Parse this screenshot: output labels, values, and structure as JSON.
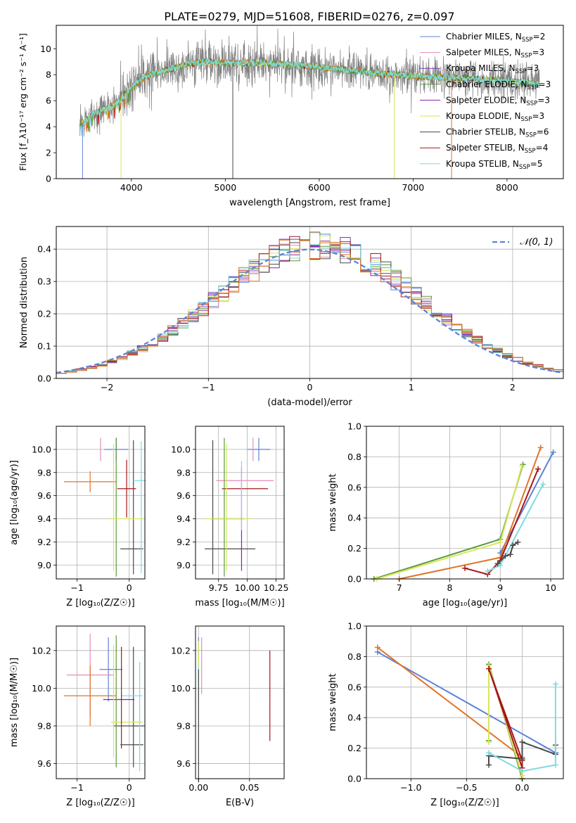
{
  "figure_title": "PLATE=0279, MJD=51608, FIBERID=0276, z=0.097",
  "colors": {
    "Chabrier MILES": "#5b84d6",
    "Salpeter MILES": "#e98cb8",
    "Kroupa MILES": "#7a3cb0",
    "Chabrier ELODIE": "#5a9a3a",
    "Salpeter ELODIE": "#8c1fb0",
    "Kroupa ELODIE": "#d8e65a",
    "Chabrier STELIB": "#4a4a4a",
    "Salpeter STELIB": "#a51818",
    "Kroupa STELIB": "#7fdbe0",
    "orange": "#e07426",
    "data": "#808080",
    "gauss": "#5b84d6"
  },
  "legend_spectrum": [
    {
      "name": "Chabrier MILES",
      "label": "Chabrier MILES, N",
      "n": "2"
    },
    {
      "name": "Salpeter MILES",
      "label": "Salpeter MILES, N",
      "n": "3"
    },
    {
      "name": "Kroupa MILES",
      "label": "Kroupa MILES, N",
      "n": "3"
    },
    {
      "name": "Chabrier ELODIE",
      "label": "Chabrier ELODIE, N",
      "n": "3"
    },
    {
      "name": "Salpeter ELODIE",
      "label": "Salpeter ELODIE, N",
      "n": "3"
    },
    {
      "name": "Kroupa ELODIE",
      "label": "Kroupa ELODIE, N",
      "n": "3"
    },
    {
      "name": "Chabrier STELIB",
      "label": "Chabrier STELIB, N",
      "n": "6"
    },
    {
      "name": "Salpeter STELIB",
      "label": "Salpeter STELIB, N",
      "n": "4"
    },
    {
      "name": "Kroupa STELIB",
      "label": "Kroupa STELIB, N",
      "n": "5"
    }
  ],
  "legend_sub": "SSP",
  "chart_data": [
    {
      "id": "spectrum",
      "type": "line",
      "xlabel": "wavelength [Angstrom, rest frame]",
      "ylabel": "Flux [f_λ10⁻¹⁷ erg cm⁻² s⁻¹ A⁻¹]",
      "xlim": [
        3200,
        8600
      ],
      "ylim": [
        0,
        11.8
      ],
      "xticks": [
        4000,
        5000,
        6000,
        7000,
        8000
      ],
      "yticks": [
        0,
        2,
        4,
        6,
        8,
        10
      ],
      "continuum": {
        "x": [
          3450,
          3500,
          3600,
          3700,
          3800,
          3900,
          4000,
          4100,
          4200,
          4400,
          4600,
          4800,
          5000,
          5200,
          5400,
          5600,
          5800,
          6000,
          6200,
          6400,
          6600,
          6800,
          7000,
          7200,
          7400,
          7600,
          7800,
          8000,
          8200,
          8350
        ],
        "y": [
          4.1,
          4.3,
          5.0,
          5.3,
          5.6,
          6.2,
          7.0,
          7.6,
          8.0,
          8.4,
          8.8,
          9.0,
          8.9,
          8.9,
          8.9,
          8.8,
          8.7,
          8.6,
          8.4,
          8.3,
          8.1,
          8.0,
          7.9,
          7.8,
          7.8,
          7.7,
          7.6,
          7.5,
          7.4,
          7.2
        ]
      }
    },
    {
      "id": "residuals",
      "type": "histogram",
      "xlabel": "(data-model)/error",
      "ylabel": "Normed distribution",
      "xlim": [
        -2.5,
        2.5
      ],
      "ylim": [
        0,
        0.47
      ],
      "xticks": [
        -2,
        -1,
        0,
        1,
        2
      ],
      "yticks": [
        0.0,
        0.1,
        0.2,
        0.3,
        0.4
      ],
      "legend": "𝒩(0, 1)",
      "bin_width": 0.1,
      "bins_start": -2.5
    },
    {
      "id": "age-vs-Z",
      "type": "errorbar",
      "xlabel": "Z [log₁₀(Z/Z☉)]",
      "ylabel": "age [log₁₀(age/yr)]",
      "xlim": [
        -1.4,
        0.3
      ],
      "ylim": [
        8.88,
        10.2
      ],
      "xticks": [
        -1,
        0
      ],
      "xticklabels": [
        "−1",
        "0"
      ],
      "yticks": [
        9.0,
        9.2,
        9.4,
        9.6,
        9.8,
        10.0
      ],
      "points": [
        {
          "series": "Chabrier MILES",
          "x": -0.25,
          "xerr": 0.23,
          "y": 10.0,
          "yerr": 0.1
        },
        {
          "series": "orange",
          "x": -0.75,
          "xerr": 0.5,
          "y": 9.72,
          "yerr": 0.09
        },
        {
          "series": "Salpeter MILES",
          "x": -0.55,
          "xerr": 0.0,
          "y": 10.0,
          "yerr": 0.1
        },
        {
          "series": "Salpeter STELIB",
          "x": -0.05,
          "xerr": 0.18,
          "y": 9.66,
          "yerr": 0.25
        },
        {
          "series": "Kroupa ELODIE",
          "x": -0.3,
          "xerr": 0.0,
          "y": 9.5,
          "yerr": 0.55
        },
        {
          "series": "Chabrier ELODIE",
          "x": -0.25,
          "xerr": 0.0,
          "y": 9.5,
          "yerr": 0.6
        },
        {
          "series": "Chabrier STELIB",
          "x": 0.05,
          "xerr": 0.22,
          "y": 9.14,
          "yerr": 0.0
        },
        {
          "series": "Chabrier STELIB",
          "x": 0.08,
          "xerr": 0.0,
          "y": 9.5,
          "yerr": 0.58
        },
        {
          "series": "Kroupa STELIB",
          "x": 0.2,
          "xerr": 0.12,
          "y": 9.73,
          "yerr": 0.0
        },
        {
          "series": "Kroupa STELIB",
          "x": 0.23,
          "xerr": 0.0,
          "y": 9.5,
          "yerr": 0.57
        },
        {
          "series": "Kroupa ELODIE",
          "x": -0.05,
          "xerr": 0.32,
          "y": 9.4,
          "yerr": 0.0
        }
      ]
    },
    {
      "id": "age-vs-mass",
      "type": "errorbar",
      "xlabel": "mass [log₁₀(M/M☉)]",
      "ylabel": "",
      "xlim": [
        9.55,
        10.32
      ],
      "ylim": [
        8.88,
        10.2
      ],
      "xticks": [
        9.75,
        10.0,
        10.25
      ],
      "xticklabels": [
        "9.75",
        "10.00",
        "10.25"
      ],
      "yticks": [
        9.0,
        9.2,
        9.4,
        9.6,
        9.8,
        10.0
      ],
      "points": [
        {
          "series": "Chabrier MILES",
          "x": 10.1,
          "xerr": 0.1,
          "y": 10.0,
          "yerr": 0.1
        },
        {
          "series": "Salpeter MILES",
          "x": 10.05,
          "xerr": 0.0,
          "y": 10.0,
          "yerr": 0.1
        },
        {
          "series": "Salpeter MILES",
          "x": 9.98,
          "xerr": 0.25,
          "y": 9.73,
          "yerr": 0.0
        },
        {
          "series": "Salpeter STELIB",
          "x": 9.98,
          "xerr": 0.2,
          "y": 9.66,
          "yerr": 0.0
        },
        {
          "series": "Chabrier STELIB",
          "x": 9.83,
          "xerr": 0.15,
          "y": 9.4,
          "yerr": 0.0
        },
        {
          "series": "Chabrier STELIB",
          "x": 9.85,
          "xerr": 0.22,
          "y": 9.14,
          "yerr": 0.0
        },
        {
          "series": "Chabrier STELIB",
          "x": 9.7,
          "xerr": 0.0,
          "y": 9.5,
          "yerr": 0.58
        },
        {
          "series": "Kroupa ELODIE",
          "x": 9.82,
          "xerr": 0.0,
          "y": 9.5,
          "yerr": 0.55
        },
        {
          "series": "Chabrier ELODIE",
          "x": 9.8,
          "xerr": 0.0,
          "y": 9.5,
          "yerr": 0.6
        },
        {
          "series": "Kroupa ELODIE",
          "x": 9.83,
          "xerr": 0.2,
          "y": 9.4,
          "yerr": 0.0
        },
        {
          "series": "Salpeter ELODIE",
          "x": 9.95,
          "xerr": 0.0,
          "y": 9.4,
          "yerr": 0.45
        },
        {
          "series": "Kroupa STELIB",
          "x": 9.95,
          "xerr": 0.0,
          "y": 9.6,
          "yerr": 0.3
        }
      ]
    },
    {
      "id": "weight-vs-age",
      "type": "line",
      "xlabel": "age [log₁₀(age/yr)]",
      "ylabel": "mass weight",
      "xlim": [
        6.35,
        10.25
      ],
      "ylim": [
        0,
        1.0
      ],
      "xticks": [
        7,
        8,
        9,
        10
      ],
      "yticks": [
        0.0,
        0.2,
        0.4,
        0.6,
        0.8,
        1.0
      ],
      "series": [
        {
          "name": "Chabrier MILES",
          "x": [
            9.0,
            10.05
          ],
          "y": [
            0.17,
            0.83
          ]
        },
        {
          "name": "orange",
          "x": [
            7.0,
            9.0,
            9.8
          ],
          "y": [
            0.0,
            0.14,
            0.86
          ]
        },
        {
          "name": "Chabrier ELODIE",
          "x": [
            6.5,
            9.0,
            9.45
          ],
          "y": [
            0.0,
            0.26,
            0.75
          ]
        },
        {
          "name": "Kroupa ELODIE",
          "x": [
            6.55,
            9.0,
            9.43
          ],
          "y": [
            0.0,
            0.24,
            0.74
          ]
        },
        {
          "name": "Salpeter STELIB",
          "x": [
            8.3,
            8.75,
            9.0,
            9.75
          ],
          "y": [
            0.07,
            0.03,
            0.12,
            0.72
          ]
        },
        {
          "name": "Kroupa STELIB",
          "x": [
            8.75,
            9.0,
            9.85
          ],
          "y": [
            0.05,
            0.09,
            0.62
          ]
        },
        {
          "name": "Chabrier STELIB",
          "x": [
            8.95,
            9.1,
            9.2,
            9.25,
            9.35
          ],
          "y": [
            0.1,
            0.15,
            0.16,
            0.22,
            0.24
          ]
        }
      ]
    },
    {
      "id": "mass-vs-Z",
      "type": "errorbar",
      "xlabel": "Z [log₁₀(Z/Z☉)]",
      "ylabel": "mass [log₁₀(M/M☉)]",
      "xlim": [
        -1.4,
        0.3
      ],
      "ylim": [
        9.52,
        10.33
      ],
      "xticks": [
        -1,
        0
      ],
      "xticklabels": [
        "−1",
        "0"
      ],
      "yticks": [
        9.6,
        9.8,
        10.0,
        10.2
      ],
      "points": [
        {
          "series": "Chabrier MILES",
          "x": -0.35,
          "xerr": 0.22,
          "y": 10.1,
          "yerr": 0.0
        },
        {
          "series": "Chabrier MILES",
          "x": -0.4,
          "xerr": 0.0,
          "y": 10.1,
          "yerr": 0.17
        },
        {
          "series": "Salpeter MILES",
          "x": -0.75,
          "xerr": 0.45,
          "y": 10.07,
          "yerr": 0.0
        },
        {
          "series": "Salpeter MILES",
          "x": -0.75,
          "xerr": 0.0,
          "y": 10.07,
          "yerr": 0.22
        },
        {
          "series": "orange",
          "x": -0.75,
          "xerr": 0.5,
          "y": 9.96,
          "yerr": 0.0
        },
        {
          "series": "orange",
          "x": -0.75,
          "xerr": 0.0,
          "y": 9.96,
          "yerr": 0.16
        },
        {
          "series": "Salpeter ELODIE",
          "x": -0.2,
          "xerr": 0.3,
          "y": 9.94,
          "yerr": 0.0
        },
        {
          "series": "Chabrier STELIB",
          "x": 0.08,
          "xerr": 0.0,
          "y": 9.9,
          "yerr": 0.32
        },
        {
          "series": "Chabrier STELIB",
          "x": 0.0,
          "xerr": 0.3,
          "y": 9.8,
          "yerr": 0.0
        },
        {
          "series": "Chabrier STELIB",
          "x": 0.05,
          "xerr": 0.22,
          "y": 9.7,
          "yerr": 0.0
        },
        {
          "series": "Chabrier ELODIE",
          "x": -0.25,
          "xerr": 0.0,
          "y": 9.93,
          "yerr": 0.35
        },
        {
          "series": "Kroupa ELODIE",
          "x": -0.3,
          "xerr": 0.0,
          "y": 9.93,
          "yerr": 0.3
        },
        {
          "series": "Kroupa ELODIE",
          "x": -0.05,
          "xerr": 0.3,
          "y": 9.82,
          "yerr": 0.0
        },
        {
          "series": "Kroupa STELIB",
          "x": 0.2,
          "xerr": 0.0,
          "y": 9.85,
          "yerr": 0.29
        },
        {
          "series": "Kroupa STELIB",
          "x": 0.05,
          "xerr": 0.2,
          "y": 9.96,
          "yerr": 0.0
        },
        {
          "series": "Salpeter STELIB",
          "x": -0.15,
          "xerr": 0.0,
          "y": 9.95,
          "yerr": 0.27
        }
      ]
    },
    {
      "id": "mass-vs-EBV",
      "type": "errorbar",
      "xlabel": "E(B-V)",
      "ylabel": "",
      "xlim": [
        -0.003,
        0.084
      ],
      "ylim": [
        9.52,
        10.33
      ],
      "xticks": [
        0.0,
        0.05
      ],
      "xticklabels": [
        "0.00",
        "0.05"
      ],
      "yticks": [
        9.6,
        9.8,
        10.0,
        10.2
      ],
      "points": [
        {
          "series": "Salpeter STELIB",
          "x": 0.07,
          "xerr": 0.0,
          "y": 9.96,
          "yerr": 0.24
        },
        {
          "series": "Salpeter MILES",
          "x": 0.003,
          "xerr": 0.0,
          "y": 10.12,
          "yerr": 0.15
        },
        {
          "series": "Chabrier MILES",
          "x": 0.0,
          "xerr": 0.0,
          "y": 10.1,
          "yerr": 0.17
        },
        {
          "series": "Kroupa ELODIE",
          "x": 0.0,
          "xerr": 0.0,
          "y": 9.9,
          "yerr": 0.35
        },
        {
          "series": "Kroupa STELIB",
          "x": 0.0,
          "xerr": 0.0,
          "y": 9.82,
          "yerr": 0.3
        },
        {
          "series": "Chabrier STELIB",
          "x": 0.0,
          "xerr": 0.0,
          "y": 9.8,
          "yerr": 0.3
        }
      ]
    },
    {
      "id": "weight-vs-Z",
      "type": "line",
      "xlabel": "Z [log₁₀(Z/Z☉)]",
      "ylabel": "mass weight",
      "xlim": [
        -1.4,
        0.37
      ],
      "ylim": [
        0,
        1.0
      ],
      "xticks": [
        -1.0,
        -0.5,
        0.0
      ],
      "xticklabels": [
        "−1.0",
        "−0.5",
        "0.0"
      ],
      "yticks": [
        0.0,
        0.2,
        0.4,
        0.6,
        0.8,
        1.0
      ],
      "series": [
        {
          "name": "Chabrier MILES",
          "x": [
            -1.3,
            0.3
          ],
          "y": [
            0.83,
            0.17
          ]
        },
        {
          "name": "orange",
          "x": [
            -1.3,
            0.0,
            0.0
          ],
          "y": [
            0.86,
            0.14,
            0.0
          ]
        },
        {
          "name": "Chabrier ELODIE",
          "x": [
            -0.3,
            -0.3,
            0.0
          ],
          "y": [
            0.25,
            0.75,
            0.0
          ]
        },
        {
          "name": "Kroupa ELODIE",
          "x": [
            -0.3,
            -0.3,
            0.0
          ],
          "y": [
            0.24,
            0.74,
            0.02
          ]
        },
        {
          "name": "Salpeter STELIB",
          "x": [
            -0.3,
            0.0,
            0.0,
            -0.3
          ],
          "y": [
            0.72,
            0.07,
            0.12,
            0.72
          ]
        },
        {
          "name": "Chabrier STELIB",
          "x": [
            -0.3,
            -0.3,
            0.0,
            0.0,
            0.3,
            0.3
          ],
          "y": [
            0.09,
            0.15,
            0.13,
            0.24,
            0.16,
            0.22
          ]
        },
        {
          "name": "Kroupa STELIB",
          "x": [
            -0.3,
            0.0,
            0.3,
            0.3
          ],
          "y": [
            0.17,
            0.05,
            0.09,
            0.62
          ]
        }
      ]
    }
  ]
}
